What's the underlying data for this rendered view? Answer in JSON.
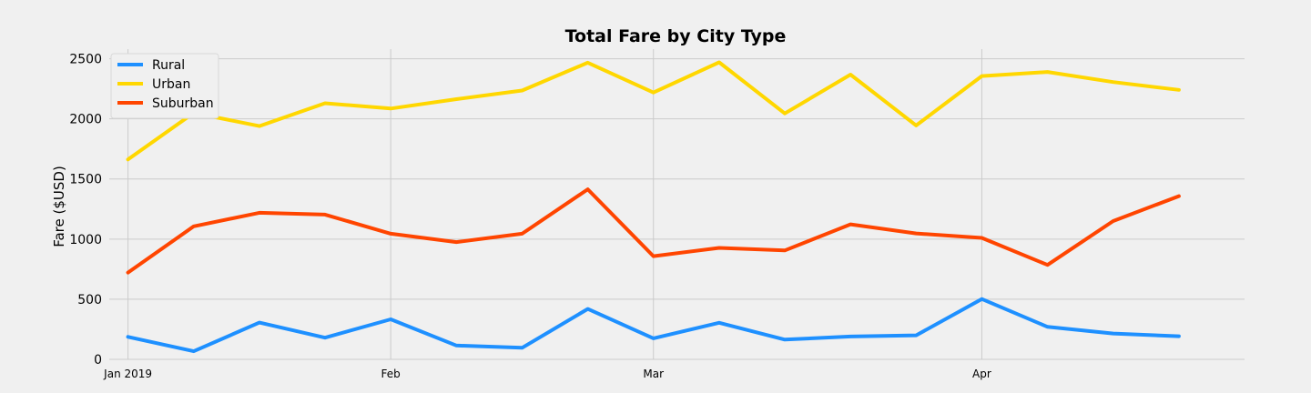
{
  "chart_data": {
    "type": "line",
    "title": "Total Fare by City Type",
    "xlabel": "",
    "ylabel": "Fare ($USD)",
    "ylim": [
      0,
      2580
    ],
    "yticks": [
      0,
      500,
      1000,
      1500,
      2000,
      2500
    ],
    "grid": true,
    "legend_position": "top-left",
    "x": [
      "2019-01-06",
      "2019-01-13",
      "2019-01-20",
      "2019-01-27",
      "2019-02-03",
      "2019-02-10",
      "2019-02-17",
      "2019-02-24",
      "2019-03-03",
      "2019-03-10",
      "2019-03-17",
      "2019-03-24",
      "2019-03-31",
      "2019-04-07",
      "2019-04-14",
      "2019-04-21",
      "2019-04-28"
    ],
    "x_range": [
      "2019-01-04",
      "2019-05-05"
    ],
    "xticks": [
      {
        "date": "2019-01-06",
        "label": "Jan 2019"
      },
      {
        "date": "2019-02-03",
        "label": "Feb"
      },
      {
        "date": "2019-03-03",
        "label": "Mar"
      },
      {
        "date": "2019-04-07",
        "label": "Apr"
      }
    ],
    "series": [
      {
        "name": "Rural",
        "color": "#1e90ff",
        "values": [
          187,
          67,
          306,
          180,
          333,
          115,
          96,
          419,
          175,
          304,
          164,
          190,
          200,
          502,
          270,
          215,
          192
        ]
      },
      {
        "name": "Urban",
        "color": "#ffd700",
        "values": [
          1662,
          2050,
          1940,
          2130,
          2086,
          2164,
          2236,
          2467,
          2219,
          2470,
          2045,
          2368,
          1945,
          2356,
          2390,
          2306,
          2241
        ]
      },
      {
        "name": "Suburban",
        "color": "#ff4500",
        "values": [
          722,
          1106,
          1219,
          1204,
          1045,
          975,
          1045,
          1414,
          858,
          927,
          906,
          1123,
          1047,
          1010,
          785,
          1150,
          1357
        ]
      }
    ]
  }
}
